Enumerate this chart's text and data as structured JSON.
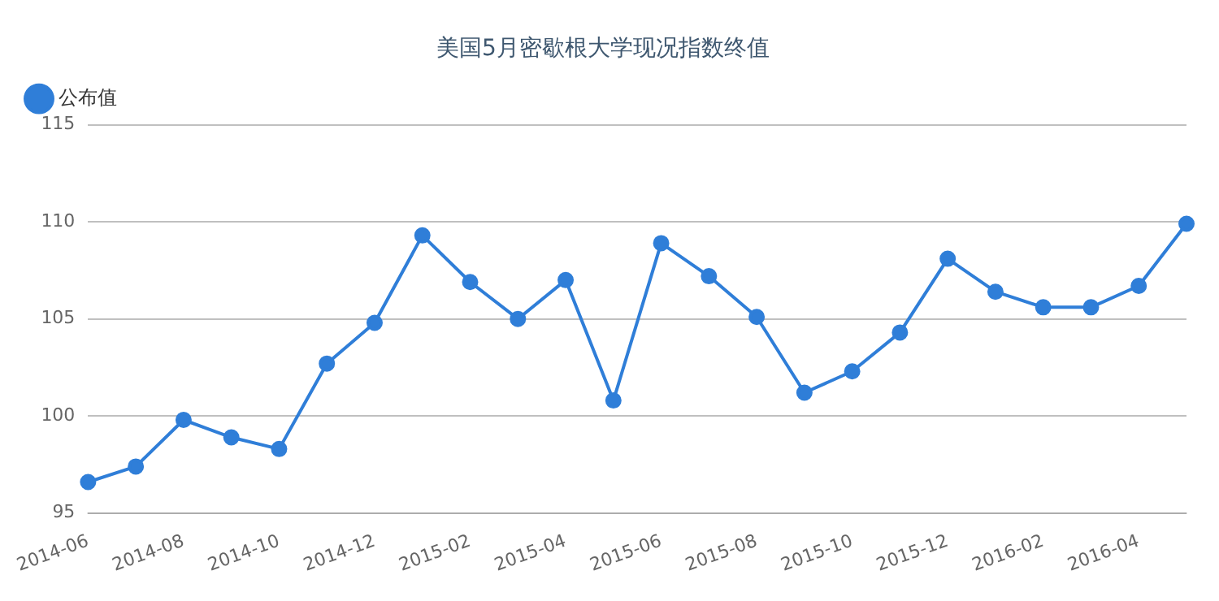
{
  "chart_data": {
    "type": "line",
    "title": "美国5月密歇根大学现况指数终值",
    "categories": [
      "2014-06",
      null,
      "2014-08",
      null,
      "2014-10",
      null,
      "2014-12",
      null,
      "2015-02",
      null,
      "2015-04",
      null,
      "2015-06",
      null,
      "2015-08",
      null,
      "2015-10",
      null,
      "2015-12",
      null,
      "2016-02",
      null,
      "2016-04",
      null
    ],
    "series": [
      {
        "name": "公布值",
        "color": "#2f7ed8",
        "values": [
          96.6,
          97.4,
          99.8,
          98.9,
          98.3,
          102.7,
          104.8,
          109.3,
          106.9,
          105.0,
          107.0,
          100.8,
          108.9,
          107.2,
          105.1,
          101.2,
          102.3,
          104.3,
          108.1,
          106.4,
          105.6,
          105.6,
          106.7,
          109.9
        ]
      }
    ],
    "ylim": [
      95,
      115
    ],
    "yticks": [
      95,
      100,
      105,
      110,
      115
    ],
    "grid": "y",
    "legend": "top left",
    "marker": "circle",
    "line_style": "solid"
  }
}
